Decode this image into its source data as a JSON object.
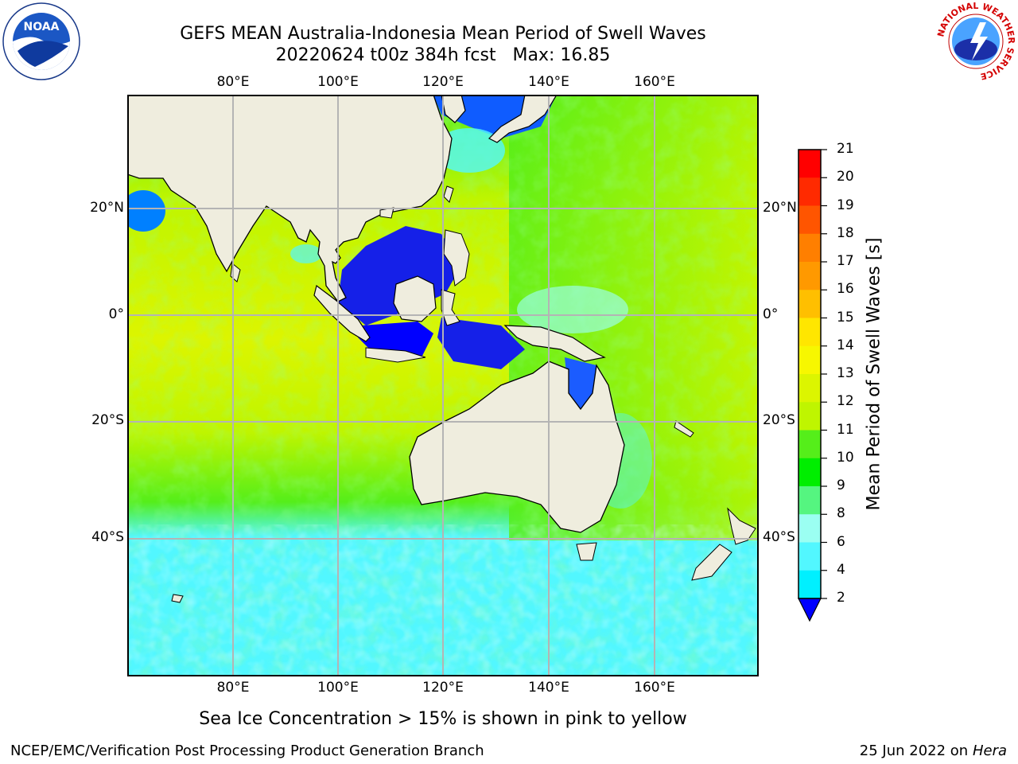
{
  "header": {
    "title_line1": "GEFS MEAN Australia-Indonesia Mean Period of Swell Waves",
    "title_line2": "20220624 t00z 384h fcst   Max: 16.85"
  },
  "map": {
    "lon_labels": [
      "80°E",
      "100°E",
      "120°E",
      "140°E",
      "160°E"
    ],
    "lat_labels": [
      "20°N",
      "0°",
      "20°S",
      "40°S"
    ],
    "colors": {
      "land": "#efedde",
      "coast": "#000000",
      "grid": "#b4b4b4"
    }
  },
  "colorbar": {
    "label": "Mean Period of Swell Waves [s]",
    "ticks": [
      "21",
      "20",
      "19",
      "18",
      "17",
      "16",
      "15",
      "14",
      "13",
      "12",
      "11",
      "10",
      "9",
      "8",
      "6",
      "4",
      "2"
    ],
    "colors": [
      "#ff0000",
      "#ff2a00",
      "#ff5500",
      "#ff7f00",
      "#ff9900",
      "#ffbf00",
      "#ffe600",
      "#f7f700",
      "#dcf500",
      "#bff500",
      "#55ee1a",
      "#00ee00",
      "#55f580",
      "#9bfff2",
      "#52f7ff",
      "#00f0ff",
      "#0080ff"
    ],
    "under_color": "#0000ff"
  },
  "footnote": "Sea Ice Concentration > 15% is shown in pink to yellow",
  "footer": {
    "left": "NCEP/EMC/Verification Post Processing Product Generation Branch",
    "right_date": "25 Jun 2022 on",
    "right_host": "Hera"
  },
  "logos": {
    "noaa_text": "NOAA",
    "nws_ring": "NATIONAL WEATHER SERVICE"
  }
}
